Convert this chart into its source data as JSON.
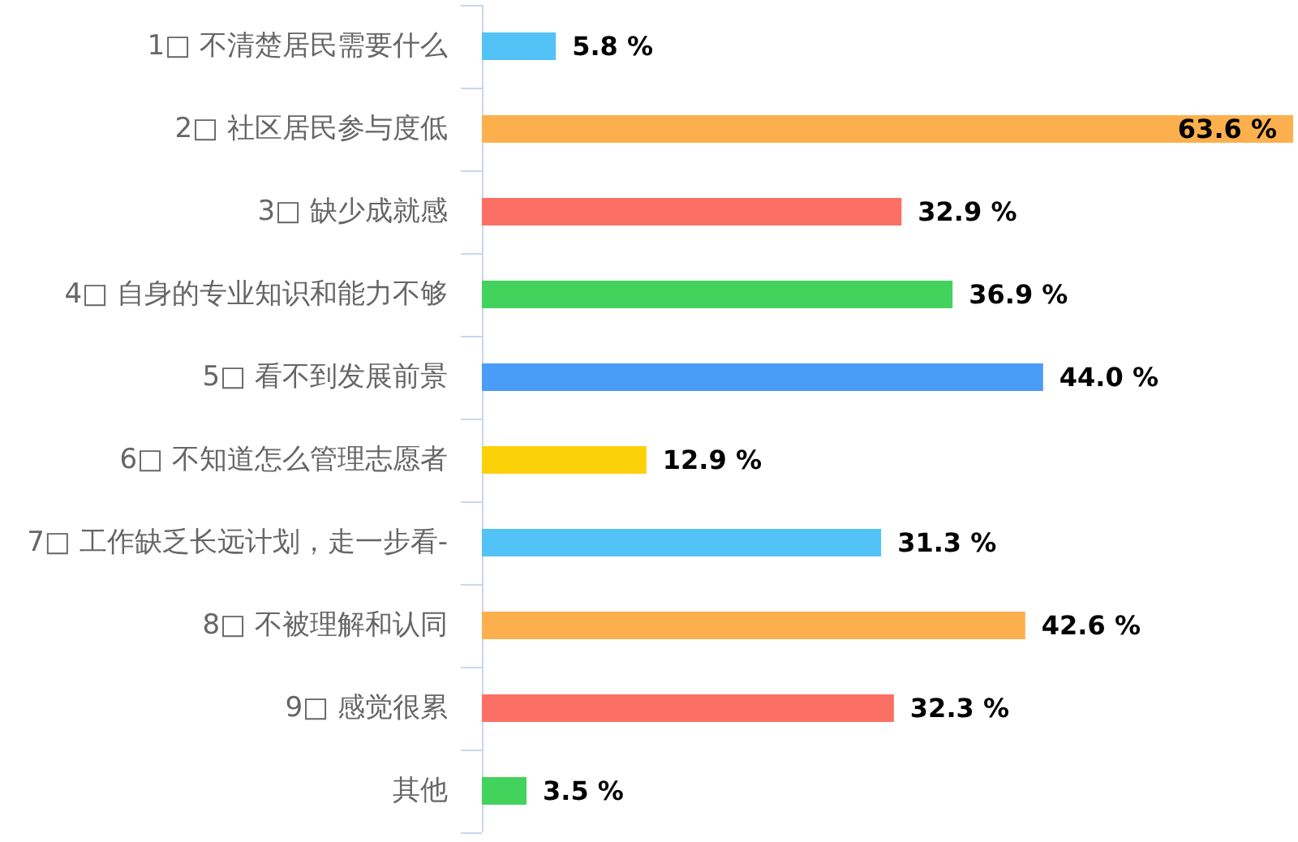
{
  "chart_data": {
    "type": "bar",
    "orientation": "horizontal",
    "categories": [
      "1□ 不清楚居民需要什么",
      "2□ 社区居民参与度低",
      "3□ 缺少成就感",
      "4□ 自身的专业知识和能力不够",
      "5□ 看不到发展前景",
      "6□ 不知道怎么管理志愿者",
      "7□ 工作缺乏长远计划，走一步看-",
      "8□ 不被理解和认同",
      "9□ 感觉很累",
      "其他"
    ],
    "values": [
      5.8,
      63.6,
      32.9,
      36.9,
      44.0,
      12.9,
      31.3,
      42.6,
      32.3,
      3.5
    ],
    "colors": [
      "#53c2f6",
      "#fcb04d",
      "#fb6f65",
      "#43d25b",
      "#4a9df6",
      "#fdd10a",
      "#53c2f6",
      "#fcb04d",
      "#fb6f65",
      "#43d25b"
    ],
    "value_labels": [
      "5.8 %",
      "63.6 %",
      "32.9 %",
      "36.9 %",
      "44.0 %",
      "12.9 %",
      "31.3 %",
      "42.6 %",
      "32.3 %",
      "3.5 %"
    ],
    "tick_labels": "y"
  }
}
